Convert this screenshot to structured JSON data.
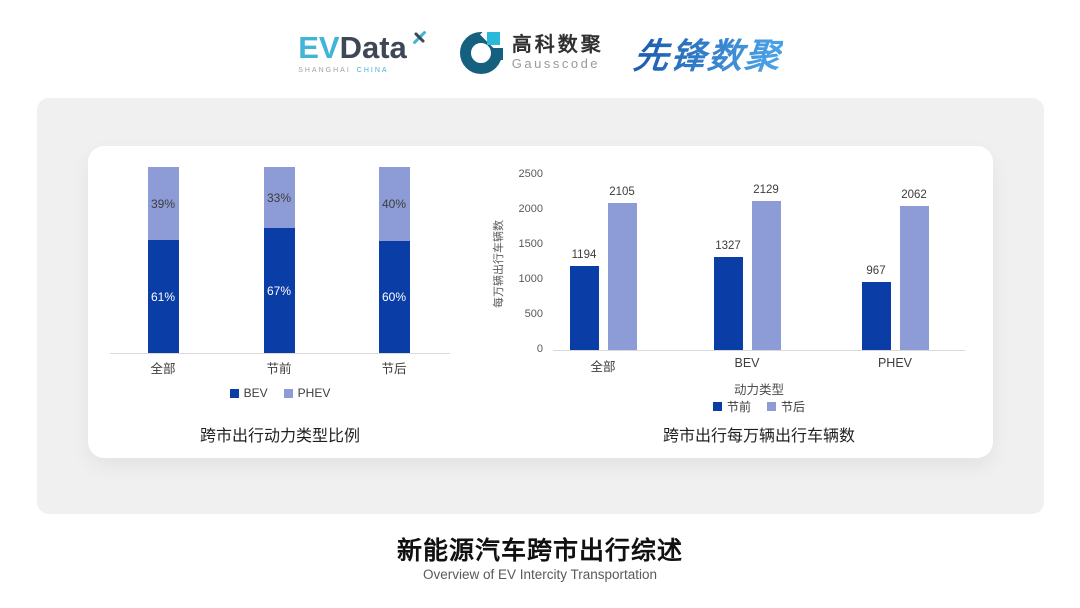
{
  "header": {
    "evdata": {
      "ev": "EV",
      "data": "Data",
      "sub1": "SHANGHAI",
      "sub2": "CHINA"
    },
    "gausscode": {
      "cn": "高科数聚",
      "en": "Gausscode"
    },
    "xianfeng": {
      "text": "先锋数聚"
    }
  },
  "colors": {
    "series_dark_blue": "#0b3da6",
    "series_light_blue": "#8d9cd6",
    "accent_cyan": "#41b5d8",
    "logo_dark": "#3d4756",
    "gauss_teal": "#15607f",
    "xianfeng_blue": "#2c7cc9",
    "card_gray": "#f0f0f0"
  },
  "chart_data": [
    {
      "type": "bar",
      "variant": "stacked_percent",
      "title": "跨市出行动力类型比例",
      "categories": [
        "全部",
        "节前",
        "节后"
      ],
      "series": [
        {
          "name": "BEV",
          "color": "#0b3da6",
          "values": [
            61,
            67,
            60
          ]
        },
        {
          "name": "PHEV",
          "color": "#8d9cd6",
          "values": [
            39,
            33,
            40
          ]
        }
      ],
      "value_suffix": "%",
      "ylim": [
        0,
        100
      ],
      "grid": false,
      "legend_position": "bottom"
    },
    {
      "type": "bar",
      "variant": "grouped",
      "title": "跨市出行每万辆出行车辆数",
      "categories": [
        "全部",
        "BEV",
        "PHEV"
      ],
      "series": [
        {
          "name": "节前",
          "color": "#0b3da6",
          "values": [
            1194,
            1327,
            967
          ]
        },
        {
          "name": "节后",
          "color": "#8d9cd6",
          "values": [
            2105,
            2129,
            2062
          ]
        }
      ],
      "xlabel": "动力类型",
      "ylabel": "每万辆出行车辆数",
      "yticks": [
        0,
        500,
        1000,
        1500,
        2000,
        2500
      ],
      "ylim": [
        0,
        2500
      ],
      "grid": false,
      "legend_position": "bottom"
    }
  ],
  "footer": {
    "title": "新能源汽车跨市出行综述",
    "subtitle": "Overview of EV Intercity Transportation"
  }
}
